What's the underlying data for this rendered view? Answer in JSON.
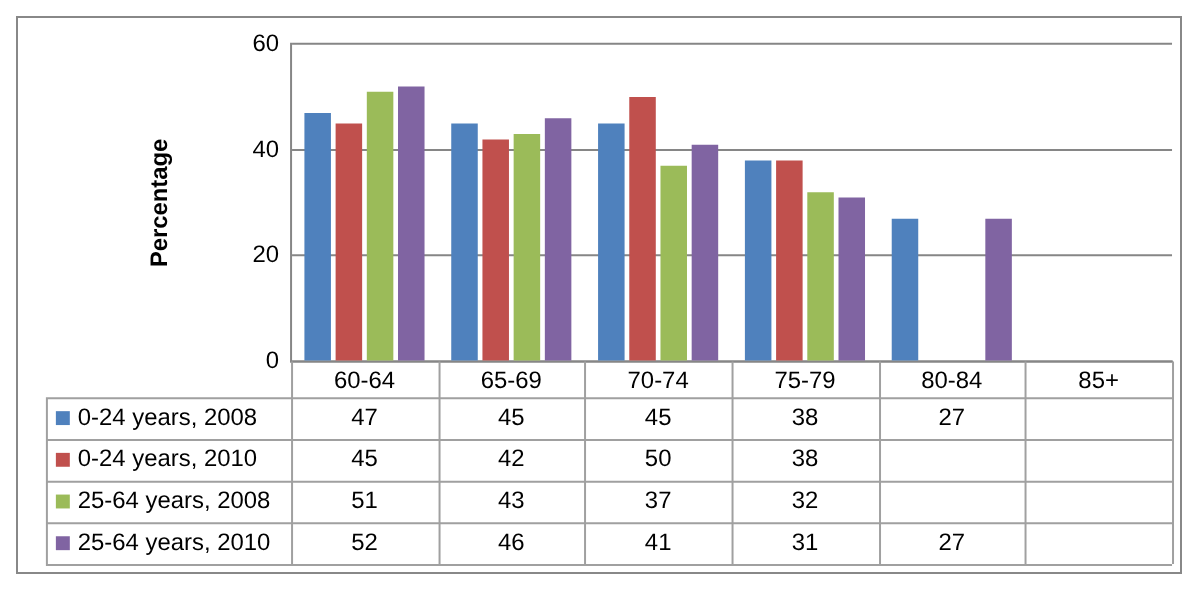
{
  "chart_data": {
    "type": "bar",
    "ylabel": "Percentage",
    "categories": [
      "60-64",
      "65-69",
      "70-74",
      "75-79",
      "80-84",
      "85+"
    ],
    "series": [
      {
        "name": "0-24 years, 2008",
        "color": "#4f81bd",
        "values": [
          47,
          45,
          45,
          38,
          27,
          null
        ]
      },
      {
        "name": "0-24 years, 2010",
        "color": "#c0504d",
        "values": [
          45,
          42,
          50,
          38,
          null,
          null
        ]
      },
      {
        "name": "25-64 years, 2008",
        "color": "#9bbb59",
        "values": [
          51,
          43,
          37,
          32,
          null,
          null
        ]
      },
      {
        "name": "25-64 years, 2010",
        "color": "#8064a2",
        "values": [
          52,
          46,
          41,
          31,
          27,
          null
        ]
      }
    ],
    "ylim": [
      0,
      60
    ],
    "yticks": [
      0,
      20,
      40,
      60
    ],
    "grid": "y",
    "legend": "bottom",
    "data_labels": true
  }
}
